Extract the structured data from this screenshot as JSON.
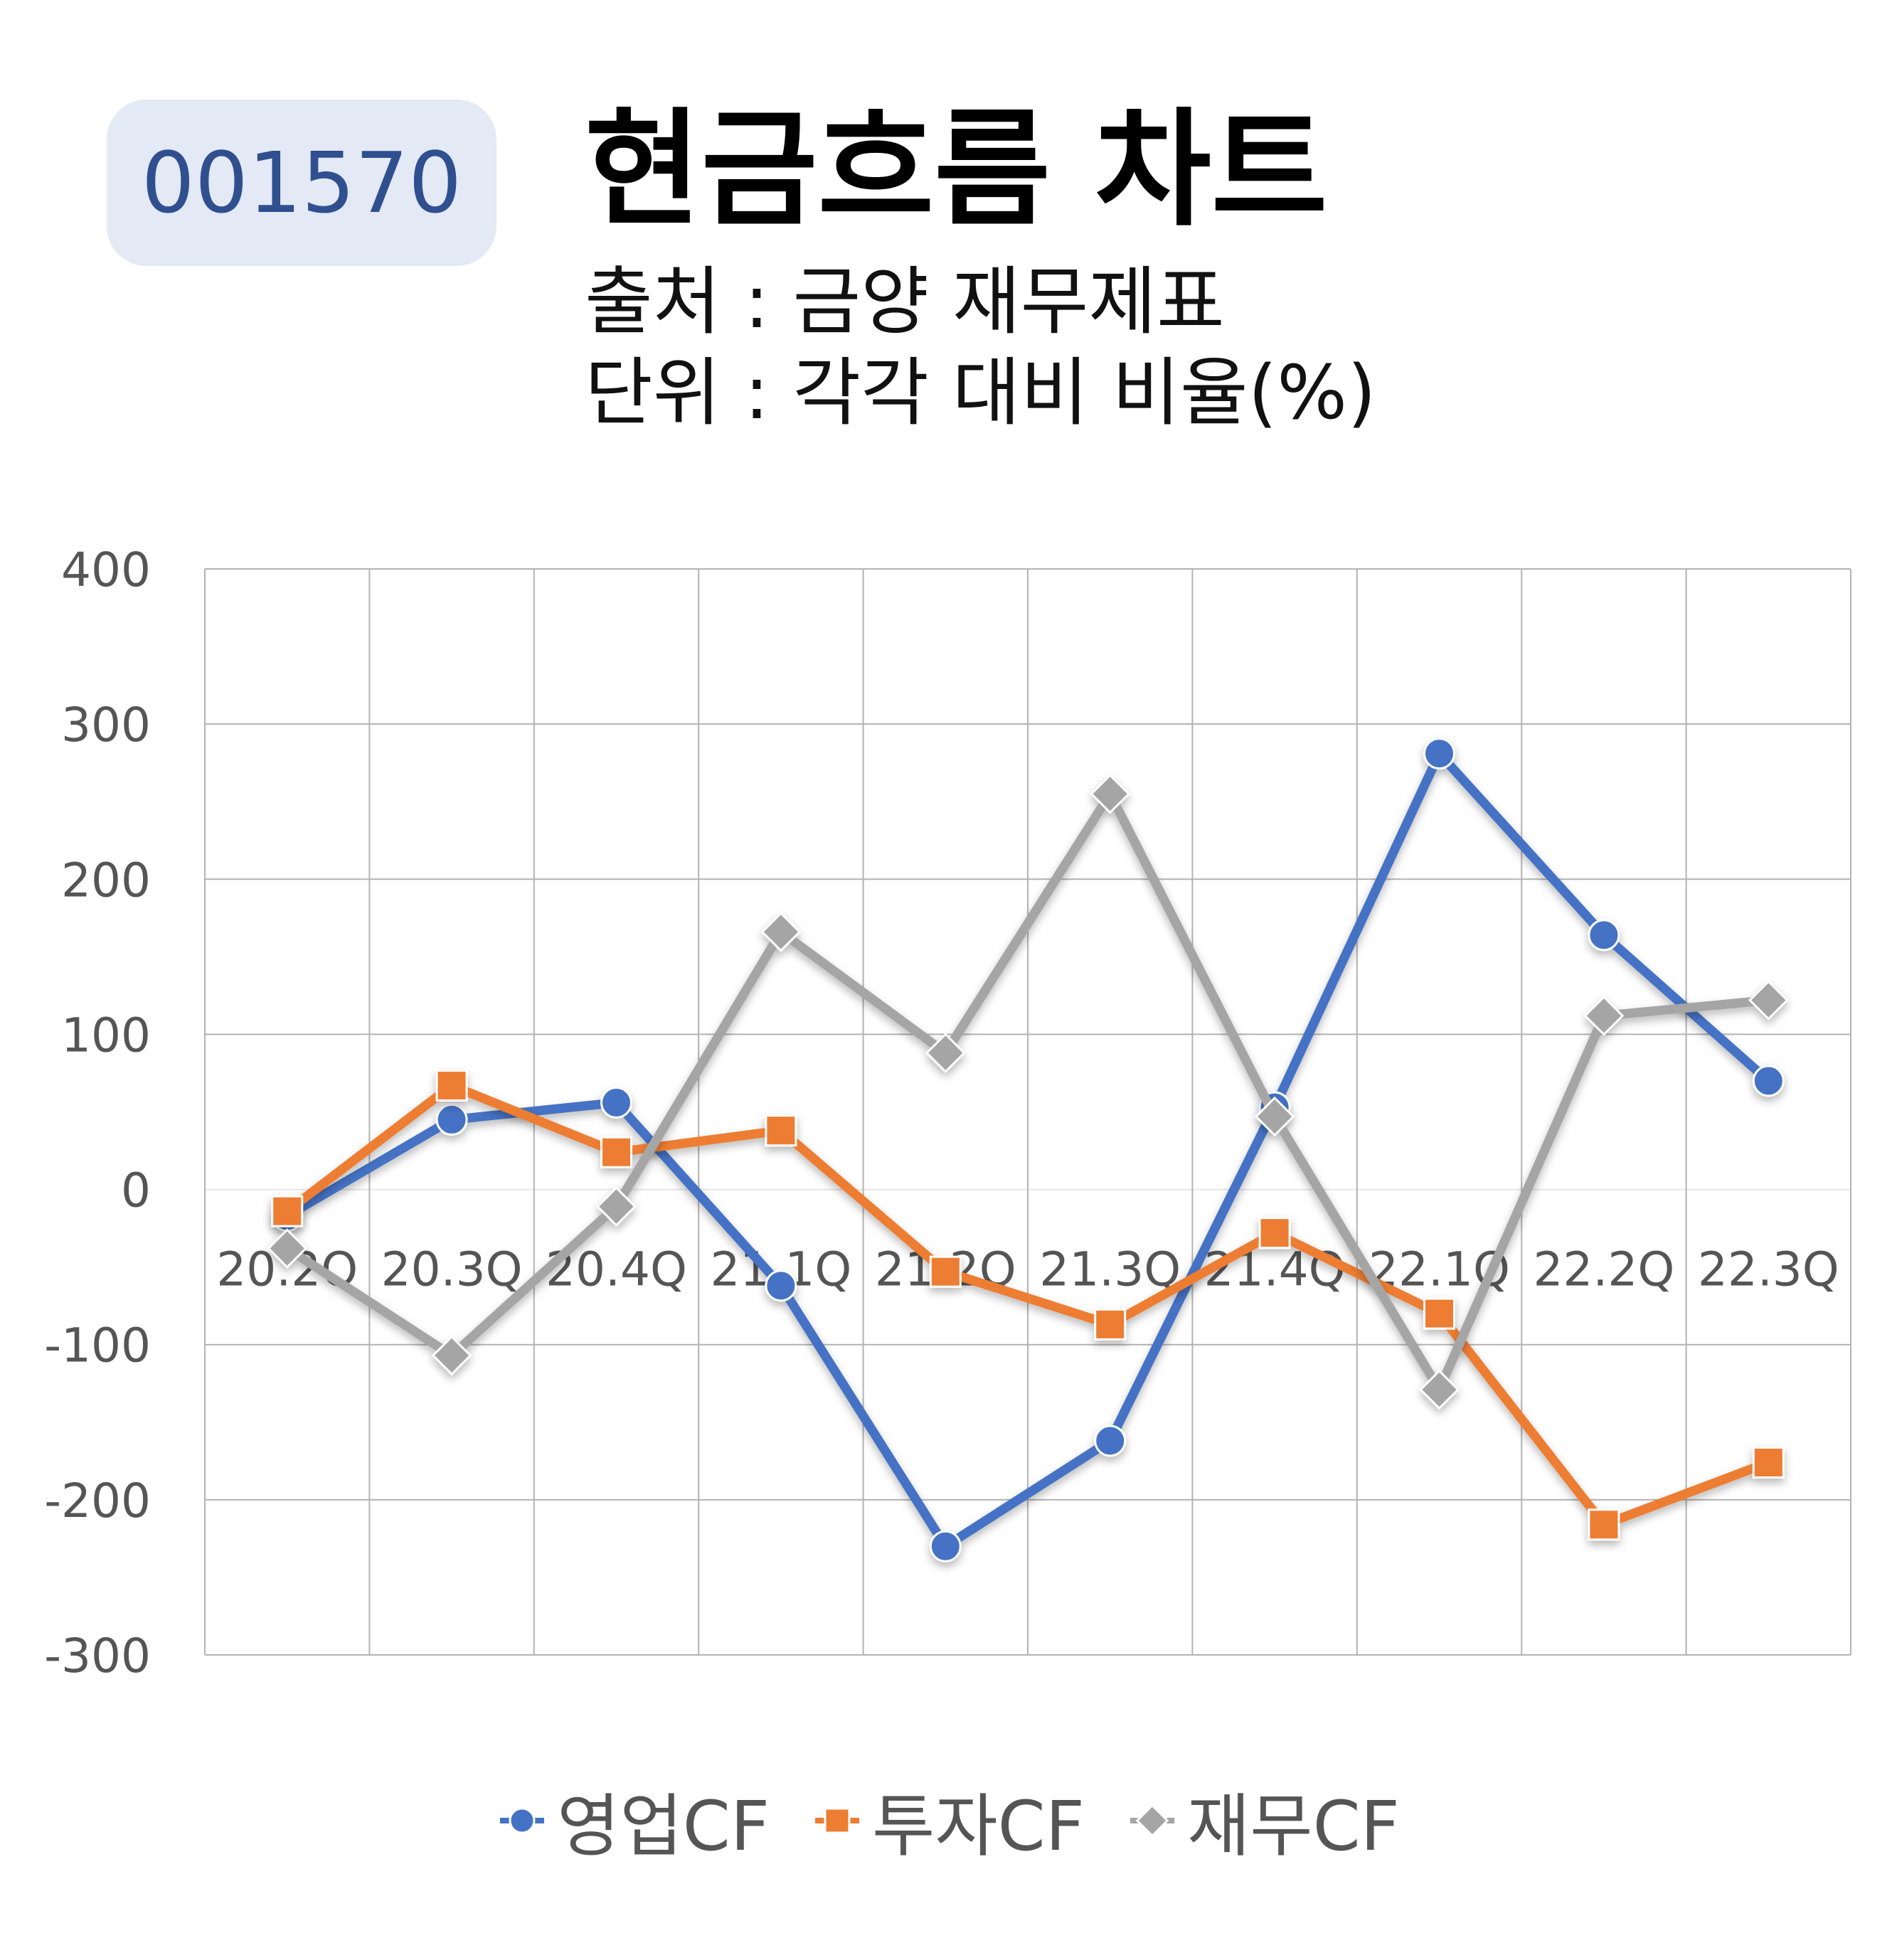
{
  "header": {
    "code": "001570",
    "title": "현금흐름 차트",
    "source_line": "출처 : 금양 재무제표",
    "unit_line": "단위 : 각각 대비 비율(%)"
  },
  "chart_data": {
    "type": "line",
    "title": "현금흐름 차트",
    "xlabel": "",
    "ylabel": "",
    "categories": [
      "20.2Q",
      "20.3Q",
      "20.4Q",
      "21.1Q",
      "21.2Q",
      "21.3Q",
      "21.4Q",
      "22.1Q",
      "22.2Q",
      "22.3Q"
    ],
    "ylim": [
      -300,
      400
    ],
    "yticks": [
      400,
      300,
      200,
      100,
      0,
      -100,
      -200,
      -300
    ],
    "grid": true,
    "legend_position": "bottom",
    "series": [
      {
        "name": "영업CF",
        "color": "#4472c4",
        "marker": "circle",
        "values": [
          -17,
          45,
          56,
          -62,
          -230,
          -162,
          53,
          281,
          164,
          70
        ]
      },
      {
        "name": "투자CF",
        "color": "#ed7d31",
        "marker": "square",
        "values": [
          -14,
          67,
          24,
          38,
          -53,
          -87,
          -28,
          -80,
          -216,
          -176
        ]
      },
      {
        "name": "재무CF",
        "color": "#a5a5a5",
        "marker": "diamond",
        "values": [
          -38,
          -107,
          -11,
          166,
          88,
          255,
          47,
          -129,
          112,
          122
        ]
      }
    ]
  }
}
